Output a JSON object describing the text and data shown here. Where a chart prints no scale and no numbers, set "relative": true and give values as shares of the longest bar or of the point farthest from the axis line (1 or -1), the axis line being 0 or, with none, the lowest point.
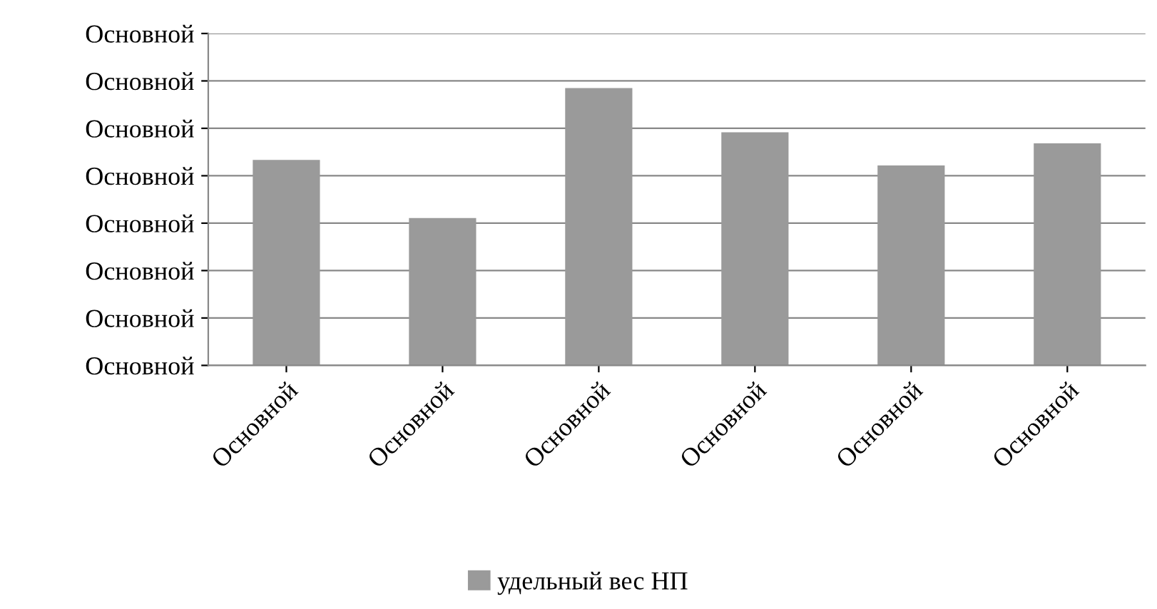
{
  "chart_data": {
    "type": "bar",
    "relative": true,
    "categories": [
      "Основной",
      "Основной",
      "Основной",
      "Основной",
      "Основной",
      "Основной"
    ],
    "series": [
      {
        "name": "удельный вес НП",
        "color": "#9a9a9a",
        "values": [
          0.74,
          0.53,
          1,
          0.84,
          0.72,
          0.8
        ]
      }
    ],
    "annotations": [
      "Основной",
      "Основной",
      "Основной",
      "Основной",
      "Основной",
      "Основной",
      "Основной",
      "Основной"
    ],
    "grid": "y",
    "legend": "bottom"
  }
}
